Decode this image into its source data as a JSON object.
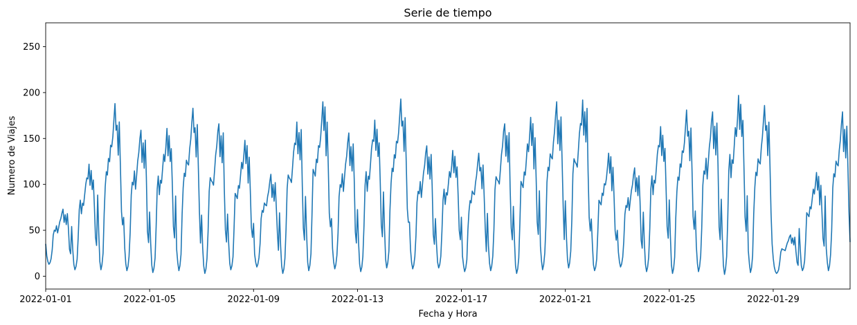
{
  "chart_data": {
    "type": "line",
    "title": "Serie de tiempo",
    "xlabel": "Fecha y Hora",
    "ylabel": "Numero de Viajes",
    "x_range": [
      "2022-01-01",
      "2022-01-31T23:00"
    ],
    "ylim": [
      -14,
      276
    ],
    "y_ticks": [
      0,
      50,
      100,
      150,
      200,
      250
    ],
    "x_ticks": [
      "2022-01-01",
      "2022-01-05",
      "2022-01-09",
      "2022-01-13",
      "2022-01-17",
      "2022-01-21",
      "2022-01-25",
      "2022-01-29"
    ],
    "grid": false,
    "line_color": "#1f77b4",
    "series": [
      {
        "resolution": "daily",
        "points": [
          {
            "date": "2022-01-01",
            "min": 13,
            "max": 73
          },
          {
            "date": "2022-01-02",
            "min": 7,
            "max": 122
          },
          {
            "date": "2022-01-03",
            "min": 7,
            "max": 188
          },
          {
            "date": "2022-01-04",
            "min": 6,
            "max": 159
          },
          {
            "date": "2022-01-05",
            "min": 4,
            "max": 161
          },
          {
            "date": "2022-01-06",
            "min": 6,
            "max": 183
          },
          {
            "date": "2022-01-07",
            "min": 3,
            "max": 166
          },
          {
            "date": "2022-01-08",
            "min": 7,
            "max": 148
          },
          {
            "date": "2022-01-09",
            "min": 10,
            "max": 111
          },
          {
            "date": "2022-01-10",
            "min": 3,
            "max": 168
          },
          {
            "date": "2022-01-11",
            "min": 6,
            "max": 190
          },
          {
            "date": "2022-01-12",
            "min": 8,
            "max": 156
          },
          {
            "date": "2022-01-13",
            "min": 5,
            "max": 170
          },
          {
            "date": "2022-01-14",
            "min": 9,
            "max": 193
          },
          {
            "date": "2022-01-15",
            "min": 8,
            "max": 142
          },
          {
            "date": "2022-01-16",
            "min": 9,
            "max": 137
          },
          {
            "date": "2022-01-17",
            "min": 5,
            "max": 134
          },
          {
            "date": "2022-01-18",
            "min": 6,
            "max": 166
          },
          {
            "date": "2022-01-19",
            "min": 3,
            "max": 173
          },
          {
            "date": "2022-01-20",
            "min": 7,
            "max": 190
          },
          {
            "date": "2022-01-21",
            "min": 9,
            "max": 192
          },
          {
            "date": "2022-01-22",
            "min": 6,
            "max": 134
          },
          {
            "date": "2022-01-23",
            "min": 10,
            "max": 118
          },
          {
            "date": "2022-01-24",
            "min": 5,
            "max": 163
          },
          {
            "date": "2022-01-25",
            "min": 3,
            "max": 181
          },
          {
            "date": "2022-01-26",
            "min": 5,
            "max": 179
          },
          {
            "date": "2022-01-27",
            "min": 2,
            "max": 197
          },
          {
            "date": "2022-01-28",
            "min": 4,
            "max": 186
          },
          {
            "date": "2022-01-29",
            "min": 3,
            "max": 45
          },
          {
            "date": "2022-01-30",
            "min": 6,
            "max": 113
          },
          {
            "date": "2022-01-31",
            "min": 6,
            "max": 179
          }
        ]
      }
    ]
  }
}
